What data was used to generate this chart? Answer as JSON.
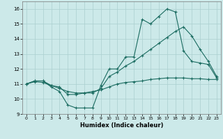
{
  "xlabel": "Humidex (Indice chaleur)",
  "bg_color": "#cce9e9",
  "grid_color": "#aacfcf",
  "line_color": "#1a6b60",
  "xlim": [
    -0.5,
    23.5
  ],
  "ylim": [
    9.0,
    16.5
  ],
  "xticks": [
    0,
    1,
    2,
    3,
    4,
    5,
    6,
    7,
    8,
    9,
    10,
    11,
    12,
    13,
    14,
    15,
    16,
    17,
    18,
    19,
    20,
    21,
    22,
    23
  ],
  "yticks": [
    9,
    10,
    11,
    12,
    13,
    14,
    15,
    16
  ],
  "line1_x": [
    0,
    1,
    2,
    3,
    4,
    5,
    6,
    7,
    8,
    9,
    10,
    11,
    12,
    13,
    14,
    15,
    16,
    17,
    18,
    19,
    20,
    21,
    22,
    23
  ],
  "line1_y": [
    11.0,
    11.2,
    11.2,
    10.8,
    10.5,
    9.6,
    9.4,
    9.4,
    9.4,
    10.9,
    12.0,
    12.0,
    12.8,
    12.8,
    15.3,
    15.0,
    15.5,
    16.0,
    15.8,
    13.2,
    12.5,
    12.4,
    12.3,
    11.4
  ],
  "line2_x": [
    0,
    1,
    2,
    3,
    4,
    5,
    6,
    7,
    8,
    9,
    10,
    11,
    12,
    13,
    14,
    15,
    16,
    17,
    18,
    19,
    20,
    21,
    22,
    23
  ],
  "line2_y": [
    11.0,
    11.2,
    11.2,
    10.9,
    10.8,
    10.3,
    10.3,
    10.4,
    10.4,
    10.7,
    11.5,
    11.8,
    12.2,
    12.5,
    12.9,
    13.3,
    13.7,
    14.1,
    14.5,
    14.8,
    14.2,
    13.3,
    12.5,
    11.5
  ],
  "line3_x": [
    0,
    1,
    2,
    3,
    4,
    5,
    6,
    7,
    8,
    9,
    10,
    11,
    12,
    13,
    14,
    15,
    16,
    17,
    18,
    19,
    20,
    21,
    22,
    23
  ],
  "line3_y": [
    11.0,
    11.15,
    11.1,
    10.9,
    10.7,
    10.5,
    10.4,
    10.4,
    10.5,
    10.6,
    10.8,
    11.0,
    11.1,
    11.15,
    11.2,
    11.3,
    11.35,
    11.4,
    11.4,
    11.4,
    11.35,
    11.35,
    11.3,
    11.3
  ]
}
